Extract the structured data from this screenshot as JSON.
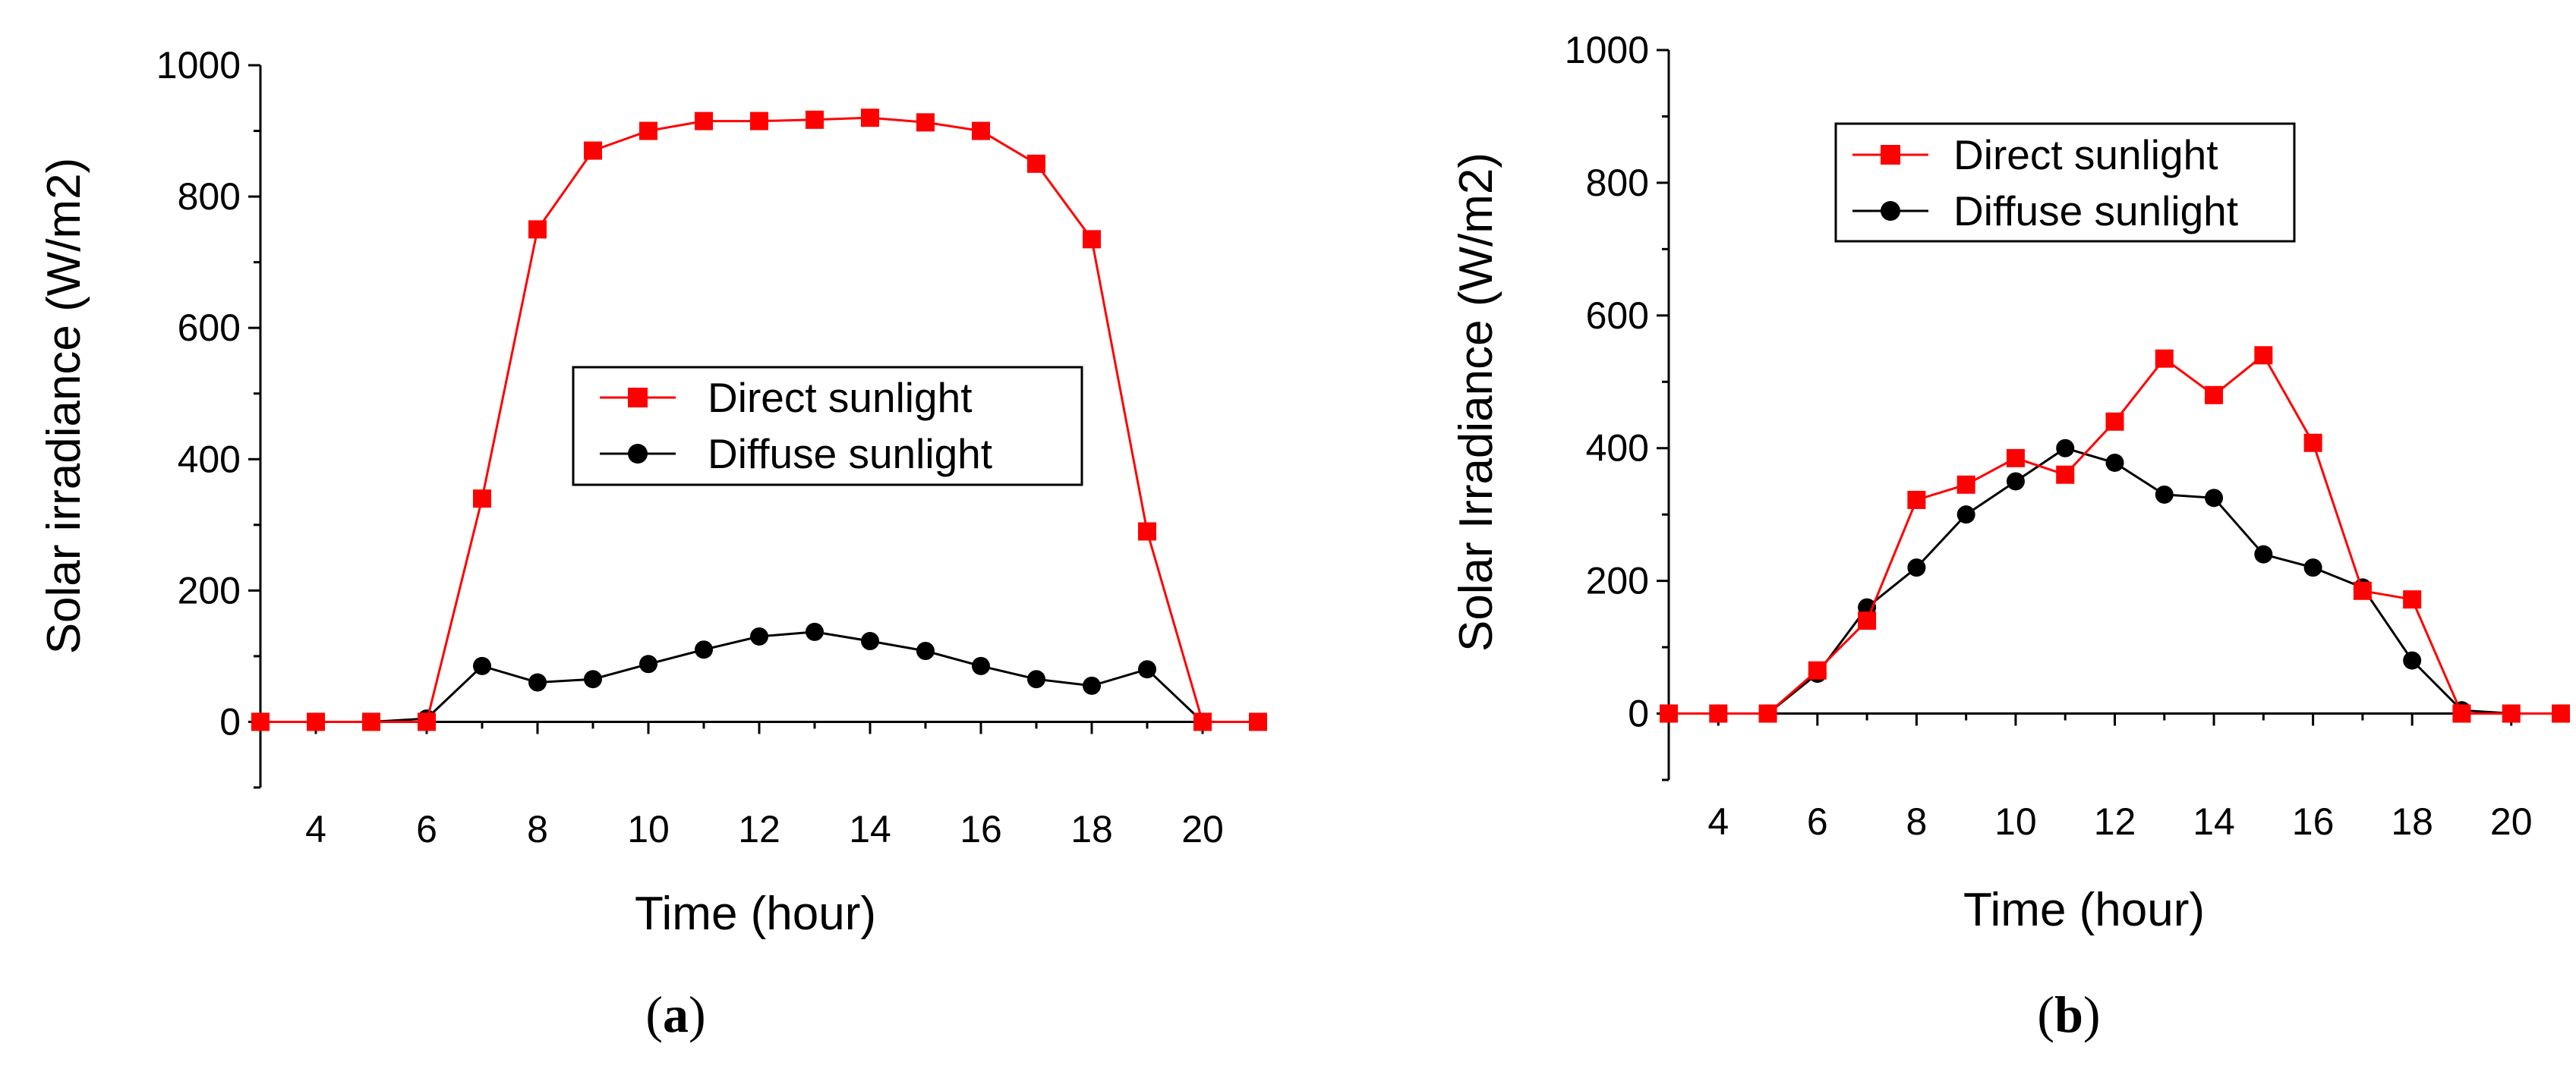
{
  "chart_data": [
    {
      "id": "a",
      "type": "line",
      "caption_open": "(",
      "caption_letter": "a",
      "caption_close": ")",
      "xlabel": "Time (hour)",
      "ylabel": "Solar irradiance (W/m2)",
      "xlim": [
        3,
        21
      ],
      "ylim": [
        -100,
        1000
      ],
      "xticks": [
        4,
        6,
        8,
        10,
        12,
        14,
        16,
        18,
        20
      ],
      "yticks": [
        0,
        200,
        400,
        600,
        800,
        1000
      ],
      "legend_position": "center",
      "series": [
        {
          "name": "Direct sunlight",
          "color": "#ff0000",
          "marker": "square",
          "x": [
            3,
            4,
            5,
            6,
            7,
            8,
            9,
            10,
            11,
            12,
            13,
            14,
            15,
            16,
            17,
            18,
            19,
            20,
            21
          ],
          "y": [
            0,
            0,
            0,
            0,
            340,
            750,
            870,
            900,
            915,
            915,
            917,
            920,
            913,
            900,
            850,
            735,
            290,
            0,
            0
          ]
        },
        {
          "name": "Diffuse sunlight",
          "color": "#000000",
          "marker": "circle",
          "x": [
            3,
            4,
            5,
            6,
            7,
            8,
            9,
            10,
            11,
            12,
            13,
            14,
            15,
            16,
            17,
            18,
            19,
            20,
            21
          ],
          "y": [
            0,
            0,
            0,
            5,
            85,
            60,
            65,
            88,
            110,
            130,
            137,
            123,
            108,
            85,
            65,
            55,
            80,
            0,
            0
          ]
        }
      ]
    },
    {
      "id": "b",
      "type": "line",
      "caption_open": "(",
      "caption_letter": "b",
      "caption_close": ")",
      "xlabel": "Time (hour)",
      "ylabel": "Solar Irradiance (W/m2)",
      "xlim": [
        3,
        21
      ],
      "ylim": [
        -100,
        1000
      ],
      "xticks": [
        4,
        6,
        8,
        10,
        12,
        14,
        16,
        18,
        20
      ],
      "yticks": [
        0,
        200,
        400,
        600,
        800,
        1000
      ],
      "legend_position": "top-right",
      "series": [
        {
          "name": "Direct sunlight",
          "color": "#ff0000",
          "marker": "square",
          "x": [
            3,
            4,
            5,
            6,
            7,
            8,
            9,
            10,
            11,
            12,
            13,
            14,
            15,
            16,
            17,
            18,
            19,
            20,
            21
          ],
          "y": [
            0,
            0,
            0,
            65,
            140,
            322,
            345,
            385,
            360,
            440,
            535,
            480,
            540,
            408,
            185,
            172,
            0,
            0,
            0
          ]
        },
        {
          "name": "Diffuse sunlight",
          "color": "#000000",
          "marker": "circle",
          "x": [
            3,
            4,
            5,
            6,
            7,
            8,
            9,
            10,
            11,
            12,
            13,
            14,
            15,
            16,
            17,
            18,
            19,
            20,
            21
          ],
          "y": [
            0,
            0,
            0,
            60,
            160,
            220,
            300,
            350,
            400,
            378,
            330,
            325,
            240,
            220,
            190,
            80,
            5,
            0,
            0
          ]
        }
      ]
    }
  ]
}
